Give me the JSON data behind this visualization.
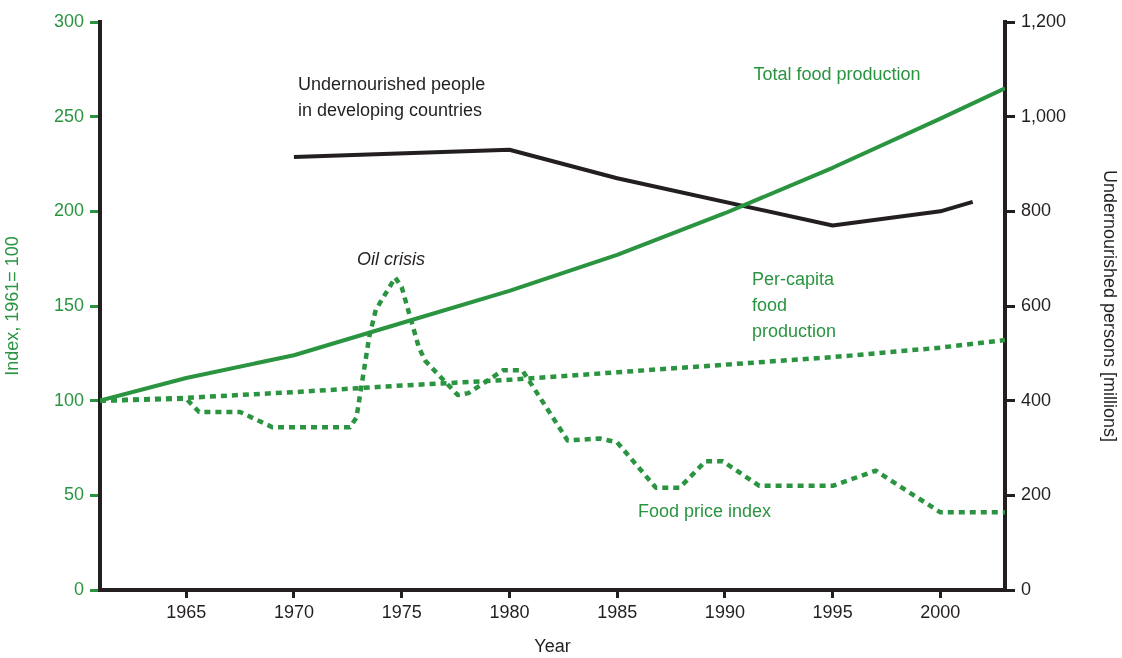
{
  "chart_data": {
    "type": "line",
    "xlabel": "Year",
    "ylabel": "Index, 1961= 100",
    "y2label": "Undernourished persons [millions]",
    "xlim": [
      1961,
      2003
    ],
    "xticks": [
      1965,
      1970,
      1975,
      1980,
      1985,
      1990,
      1995,
      2000
    ],
    "ylim": [
      0,
      300
    ],
    "yticks": [
      0,
      50,
      100,
      150,
      200,
      250,
      300
    ],
    "y2lim": [
      0,
      1200
    ],
    "y2ticks": [
      0,
      200,
      400,
      600,
      800,
      {
        "value": 1000,
        "label": "1,000"
      },
      {
        "value": 1200,
        "label": "1,200"
      }
    ],
    "legend": false,
    "marker": "none",
    "series": [
      {
        "name": "Total food production",
        "color": "#2a9440",
        "line_style": "solid",
        "x": [
          1961,
          1965,
          1970,
          1975,
          1980,
          1985,
          1990,
          1995,
          2000,
          2003
        ],
        "values": [
          100,
          112,
          124,
          141,
          158,
          177,
          199,
          223,
          249,
          265
        ]
      },
      {
        "name": "Per-capita food production",
        "color": "#2a9440",
        "line_style": "dotted",
        "x": [
          1961,
          1965,
          1970,
          1975,
          1980,
          1985,
          1990,
          1995,
          2000,
          2003
        ],
        "values": [
          100,
          101.5,
          104.5,
          108,
          111,
          115,
          119,
          123,
          128,
          132
        ]
      },
      {
        "name": "Food price index",
        "color": "#2a9440",
        "line_style": "dotted",
        "x": [
          1961,
          1965,
          1965.6,
          1967.5,
          1969,
          1972.6,
          1972.9,
          1973.5,
          1973.8,
          1974.7,
          1975,
          1975.8,
          1976.1,
          1977.6,
          1978.1,
          1979.7,
          1980.6,
          1981,
          1982.7,
          1984.2,
          1985,
          1986.8,
          1987.9,
          1989.1,
          1989.9,
          1991.6,
          1995,
          1997,
          2000,
          2003
        ],
        "values": [
          100,
          101,
          94,
          94,
          86,
          86,
          91,
          134,
          148,
          165,
          160,
          128,
          121,
          103,
          104,
          116,
          116,
          109,
          79,
          80,
          78,
          54,
          54,
          68,
          68,
          55,
          55,
          63,
          41,
          41
        ]
      },
      {
        "name": "Undernourished people in developing countries",
        "color": "#231f20",
        "line_style": "solid",
        "axis": "y2",
        "x": [
          1970,
          1980,
          1985,
          1995,
          2000,
          2001.5
        ],
        "values": [
          915,
          930,
          870,
          770,
          800,
          820
        ]
      }
    ],
    "annotations": [
      {
        "text": "Oil crisis",
        "x": 1974.5,
        "y": 165
      }
    ]
  }
}
